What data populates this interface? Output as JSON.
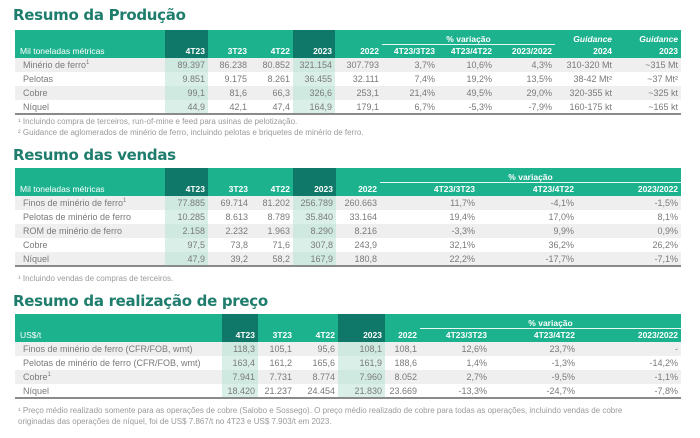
{
  "production": {
    "title": "Resumo da Produção",
    "unit": "Mil toneladas métricas",
    "columns": [
      "4T23",
      "3T23",
      "4T22",
      "2023",
      "2022",
      "4T23/3T23",
      "4T23/4T22",
      "2023/2022"
    ],
    "variation_label": "% variação",
    "guidance_2024": {
      "top": "Guidance",
      "bottom": "2024"
    },
    "guidance_2023": {
      "top": "Guidance",
      "bottom": "2023"
    },
    "rows": [
      {
        "label": "Minério de ferro",
        "sup": "1",
        "values": [
          "89.397",
          "86.238",
          "80.852",
          "321.154",
          "307.793",
          "3,7%",
          "10,6%",
          "4,3%",
          "310-320 Mt",
          "~315 Mt"
        ]
      },
      {
        "label": "Pelotas",
        "values": [
          "9.851",
          "9.175",
          "8.261",
          "36.455",
          "32.111",
          "7,4%",
          "19,2%",
          "13,5%",
          "38-42 Mt²",
          "~37 Mt²"
        ]
      },
      {
        "label": "Cobre",
        "values": [
          "99,1",
          "81,6",
          "66,3",
          "326,6",
          "253,1",
          "21,4%",
          "49,5%",
          "29,0%",
          "320-355 kt",
          "~325 kt"
        ]
      },
      {
        "label": "Níquel",
        "values": [
          "44,9",
          "42,1",
          "47,4",
          "164,9",
          "179,1",
          "6,7%",
          "-5,3%",
          "-7,9%",
          "160-175 kt",
          "~165 kt"
        ]
      }
    ],
    "footnotes": [
      "¹ Incluindo compra de terceiros, run-of-mine e feed para usinas de pelotização.",
      "² Guidance de aglomerados de minério de ferro, incluindo pelotas e briquetes de minério de ferro."
    ]
  },
  "sales": {
    "title": "Resumo das vendas",
    "unit": "Mil toneladas métricas",
    "columns": [
      "4T23",
      "3T23",
      "4T22",
      "2023",
      "2022",
      "4T23/3T23",
      "4T23/4T22",
      "2023/2022"
    ],
    "variation_label": "% variação",
    "rows": [
      {
        "label": "Finos de minério de ferro",
        "sup": "1",
        "values": [
          "77.885",
          "69.714",
          "81.202",
          "256.789",
          "260.663",
          "11,7%",
          "-4,1%",
          "-1,5%"
        ]
      },
      {
        "label": "Pelotas de minério de ferro",
        "values": [
          "10.285",
          "8.613",
          "8.789",
          "35.840",
          "33.164",
          "19,4%",
          "17,0%",
          "8,1%"
        ]
      },
      {
        "label": "ROM de minério de ferro",
        "values": [
          "2.158",
          "2.232",
          "1.963",
          "8.290",
          "8.216",
          "-3,3%",
          "9,9%",
          "0,9%"
        ]
      },
      {
        "label": "Cobre",
        "values": [
          "97,5",
          "73,8",
          "71,6",
          "307,8",
          "243,9",
          "32,1%",
          "36,2%",
          "26,2%"
        ]
      },
      {
        "label": "Níquel",
        "values": [
          "47,9",
          "39,2",
          "58,2",
          "167,9",
          "180,8",
          "22,2%",
          "-17,7%",
          "-7,1%"
        ]
      }
    ],
    "footnotes": [
      "¹ Incluindo vendas de compras de terceiros."
    ]
  },
  "prices": {
    "title": "Resumo da realização de preço",
    "unit": "US$/t",
    "columns": [
      "4T23",
      "3T23",
      "4T22",
      "2023",
      "2022",
      "4T23/3T23",
      "4T23/4T22",
      "2023/2022"
    ],
    "variation_label": "% variação",
    "rows": [
      {
        "label": "Finos de minério de ferro (CFR/FOB, wmt)",
        "values": [
          "118,3",
          "105,1",
          "95,6",
          "108,1",
          "108,1",
          "12,6%",
          "23,7%",
          "-"
        ]
      },
      {
        "label": "Pelotas de minério de ferro (CFR/FOB, wmt)",
        "values": [
          "163,4",
          "161,2",
          "165,6",
          "161,9",
          "188,6",
          "1,4%",
          "-1,3%",
          "-14,2%"
        ]
      },
      {
        "label": "Cobre",
        "sup": "1",
        "values": [
          "7.941",
          "7.731",
          "8.774",
          "7.960",
          "8.052",
          "2,7%",
          "-9,5%",
          "-1,1%"
        ]
      },
      {
        "label": "Níquel",
        "values": [
          "18.420",
          "21.237",
          "24.454",
          "21.830",
          "23.669",
          "-13,3%",
          "-24,7%",
          "-7,8%"
        ]
      }
    ],
    "footnotes": [
      "¹ Preço médio realizado somente para as operações de cobre (Salobo e Sossego). O preço médio realizado de cobre para todas as operações, incluindo vendas de cobre originadas das operações de níquel, foi de US$ 7.867/t no 4T23 e US$ 7.903/t em 2023."
    ]
  },
  "colors": {
    "header": "#1db28e",
    "header_dark": "#0f7868",
    "title": "#1e7d6c",
    "highlight": "#d9efe8"
  }
}
